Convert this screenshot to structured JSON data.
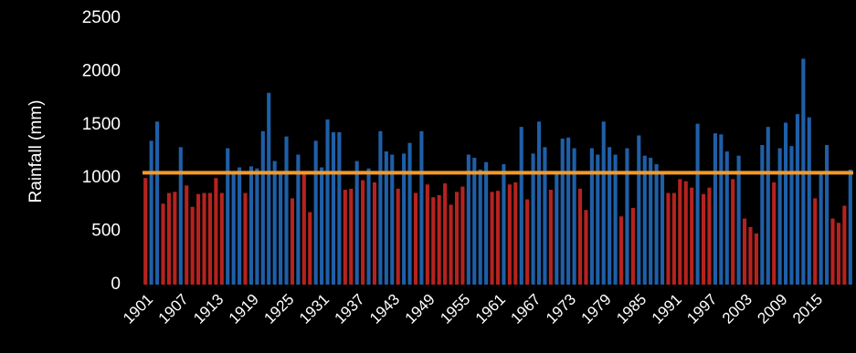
{
  "chart_data": {
    "type": "bar",
    "y_label": "Rainfall (mm)",
    "categories": [
      "1901",
      null,
      null,
      null,
      null,
      null,
      "1907",
      null,
      null,
      null,
      null,
      null,
      "1913",
      null,
      null,
      null,
      null,
      null,
      "1919",
      null,
      null,
      null,
      null,
      null,
      "1925",
      null,
      null,
      null,
      null,
      null,
      "1931",
      null,
      null,
      null,
      null,
      null,
      "1937",
      null,
      null,
      null,
      null,
      null,
      "1943",
      null,
      null,
      null,
      null,
      null,
      "1949",
      null,
      null,
      null,
      null,
      null,
      "1955",
      null,
      null,
      null,
      null,
      null,
      "1961",
      null,
      null,
      null,
      null,
      null,
      "1967",
      null,
      null,
      null,
      null,
      null,
      "1973",
      null,
      null,
      null,
      null,
      null,
      "1979",
      null,
      null,
      null,
      null,
      null,
      "1985",
      null,
      null,
      null,
      null,
      null,
      "1991",
      null,
      null,
      null,
      null,
      null,
      "1997",
      null,
      null,
      null,
      null,
      null,
      "2003",
      null,
      null,
      null,
      null,
      null,
      "2009",
      null,
      null,
      null,
      null,
      null,
      "2015",
      null,
      null,
      null,
      null,
      null,
      null
    ],
    "values": [
      1000,
      1350,
      1530,
      760,
      860,
      870,
      1290,
      930,
      730,
      850,
      860,
      860,
      1000,
      860,
      1280,
      1050,
      1100,
      860,
      1110,
      1090,
      1440,
      1800,
      1160,
      1050,
      1390,
      810,
      1220,
      1040,
      680,
      1350,
      1100,
      1550,
      1430,
      1430,
      890,
      900,
      1160,
      980,
      1090,
      960,
      1440,
      1250,
      1220,
      900,
      1230,
      1330,
      860,
      1440,
      940,
      820,
      840,
      950,
      750,
      870,
      920,
      1220,
      1190,
      1080,
      1150,
      870,
      880,
      1130,
      940,
      960,
      1480,
      800,
      1230,
      1530,
      1290,
      890,
      1050,
      1370,
      1380,
      1280,
      900,
      700,
      1280,
      1220,
      1530,
      1290,
      1220,
      640,
      1280,
      720,
      1400,
      1210,
      1190,
      1130,
      1060,
      860,
      860,
      990,
      970,
      910,
      1510,
      850,
      910,
      1420,
      1410,
      1250,
      990,
      1210,
      620,
      540,
      480,
      1310,
      1480,
      960,
      1280,
      1520,
      1300,
      1600,
      2120,
      1570,
      810,
      1060,
      1310,
      620,
      580,
      740,
      1080
    ],
    "above_color": "#1f5fa8",
    "below_color": "#b5231f",
    "reference_line": {
      "value": 1050,
      "color": "#f39a2b"
    },
    "ylim": [
      0,
      2500
    ],
    "yticks": [
      0,
      500,
      1000,
      1500,
      2000,
      2500
    ]
  }
}
